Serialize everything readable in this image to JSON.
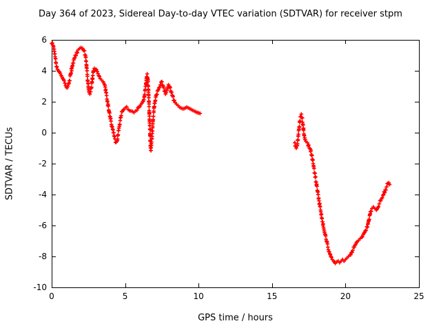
{
  "chart_data": {
    "type": "scatter",
    "title": "Day 364 of 2023, Sidereal Day-to-day VTEC variation (SDTVAR) for receiver stpm",
    "xlabel": "GPS time / hours",
    "ylabel": "SDTVAR / TECUs",
    "xlim": [
      0,
      25
    ],
    "ylim": [
      -10,
      6
    ],
    "xticks": [
      0,
      5,
      10,
      15,
      20,
      25
    ],
    "yticks": [
      -10,
      -8,
      -6,
      -4,
      -2,
      0,
      2,
      4,
      6
    ],
    "grid": false,
    "legend": "none",
    "marker": "plus",
    "marker_color": "#ff0000",
    "axis_color": "#000000",
    "background": "#ffffff",
    "series": [
      {
        "name": "SDTVAR",
        "points": [
          [
            0,
            5.75
          ],
          [
            0.05,
            5.8
          ],
          [
            0.1,
            5.65
          ],
          [
            0.15,
            5.4
          ],
          [
            0.2,
            5.1
          ],
          [
            0.25,
            4.8
          ],
          [
            0.3,
            4.5
          ],
          [
            0.35,
            4.25
          ],
          [
            0.4,
            4.1
          ],
          [
            0.45,
            4.0
          ],
          [
            0.5,
            3.95
          ],
          [
            0.55,
            3.9
          ],
          [
            0.6,
            3.8
          ],
          [
            0.65,
            3.7
          ],
          [
            0.7,
            3.6
          ],
          [
            0.75,
            3.5
          ],
          [
            0.8,
            3.45
          ],
          [
            0.85,
            3.35
          ],
          [
            0.9,
            3.2
          ],
          [
            0.95,
            3.05
          ],
          [
            1.0,
            2.95
          ],
          [
            1.05,
            2.9
          ],
          [
            1.1,
            3.0
          ],
          [
            1.15,
            3.15
          ],
          [
            1.2,
            3.35
          ],
          [
            1.3,
            3.8
          ],
          [
            1.4,
            4.3
          ],
          [
            1.5,
            4.7
          ],
          [
            1.6,
            5.0
          ],
          [
            1.7,
            5.2
          ],
          [
            1.8,
            5.35
          ],
          [
            1.9,
            5.45
          ],
          [
            2.0,
            5.5
          ],
          [
            2.1,
            5.45
          ],
          [
            2.2,
            5.3
          ],
          [
            2.3,
            5.0
          ],
          [
            2.35,
            4.6
          ],
          [
            2.4,
            4.0
          ],
          [
            2.45,
            3.4
          ],
          [
            2.5,
            2.9
          ],
          [
            2.55,
            2.6
          ],
          [
            2.6,
            2.5
          ],
          [
            2.65,
            2.65
          ],
          [
            2.7,
            2.9
          ],
          [
            2.75,
            3.3
          ],
          [
            2.8,
            3.7
          ],
          [
            2.85,
            4.0
          ],
          [
            2.9,
            4.15
          ],
          [
            3.0,
            4.1
          ],
          [
            3.1,
            3.95
          ],
          [
            3.2,
            3.7
          ],
          [
            3.3,
            3.5
          ],
          [
            3.4,
            3.4
          ],
          [
            3.5,
            3.3
          ],
          [
            3.6,
            3.1
          ],
          [
            3.7,
            2.6
          ],
          [
            3.8,
            2.0
          ],
          [
            3.9,
            1.4
          ],
          [
            4.0,
            0.9
          ],
          [
            4.1,
            0.4
          ],
          [
            4.2,
            0.0
          ],
          [
            4.3,
            -0.4
          ],
          [
            4.4,
            -0.6
          ],
          [
            4.45,
            -0.5
          ],
          [
            4.5,
            -0.2
          ],
          [
            4.6,
            0.4
          ],
          [
            4.7,
            1.0
          ],
          [
            4.8,
            1.35
          ],
          [
            4.9,
            1.5
          ],
          [
            5.0,
            1.6
          ],
          [
            5.2,
            1.5
          ],
          [
            5.4,
            1.4
          ],
          [
            5.6,
            1.3
          ],
          [
            5.8,
            1.45
          ],
          [
            6.0,
            1.7
          ],
          [
            6.2,
            2.0
          ],
          [
            6.3,
            2.3
          ],
          [
            6.4,
            3.0
          ],
          [
            6.45,
            3.5
          ],
          [
            6.5,
            3.8
          ],
          [
            6.55,
            3.4
          ],
          [
            6.6,
            2.4
          ],
          [
            6.65,
            1.2
          ],
          [
            6.7,
            -0.2
          ],
          [
            6.73,
            -1.0
          ],
          [
            6.75,
            -1.15
          ],
          [
            6.8,
            -0.6
          ],
          [
            6.85,
            0.1
          ],
          [
            6.9,
            0.8
          ],
          [
            6.95,
            1.4
          ],
          [
            7.0,
            1.9
          ],
          [
            7.1,
            2.4
          ],
          [
            7.2,
            2.7
          ],
          [
            7.3,
            2.9
          ],
          [
            7.4,
            3.1
          ],
          [
            7.5,
            3.3
          ],
          [
            7.6,
            3.0
          ],
          [
            7.7,
            2.7
          ],
          [
            7.75,
            2.5
          ],
          [
            7.8,
            2.6
          ],
          [
            7.9,
            2.95
          ],
          [
            7.95,
            3.1
          ],
          [
            8.0,
            3.0
          ],
          [
            8.1,
            2.7
          ],
          [
            8.2,
            2.4
          ],
          [
            8.3,
            2.1
          ],
          [
            8.4,
            1.95
          ],
          [
            8.5,
            1.85
          ],
          [
            8.6,
            1.75
          ],
          [
            8.7,
            1.65
          ],
          [
            8.8,
            1.6
          ],
          [
            8.9,
            1.55
          ],
          [
            9.0,
            1.55
          ],
          [
            9.1,
            1.6
          ],
          [
            9.2,
            1.65
          ],
          [
            9.3,
            1.6
          ],
          [
            9.4,
            1.55
          ],
          [
            9.5,
            1.5
          ],
          [
            9.6,
            1.45
          ],
          [
            9.7,
            1.4
          ],
          [
            9.8,
            1.35
          ],
          [
            9.9,
            1.3
          ],
          [
            10.0,
            1.28
          ],
          [
            10.1,
            1.25
          ],
          [
            16.55,
            -0.65
          ],
          [
            16.6,
            -0.85
          ],
          [
            16.65,
            -1.0
          ],
          [
            16.7,
            -0.85
          ],
          [
            16.75,
            -0.5
          ],
          [
            16.8,
            -0.1
          ],
          [
            16.85,
            0.35
          ],
          [
            16.9,
            0.75
          ],
          [
            16.95,
            1.05
          ],
          [
            17.0,
            1.2
          ],
          [
            17.05,
            0.95
          ],
          [
            17.1,
            0.55
          ],
          [
            17.15,
            0.15
          ],
          [
            17.2,
            -0.2
          ],
          [
            17.25,
            -0.45
          ],
          [
            17.3,
            -0.55
          ],
          [
            17.4,
            -0.65
          ],
          [
            17.5,
            -0.8
          ],
          [
            17.6,
            -1.05
          ],
          [
            17.7,
            -1.45
          ],
          [
            17.8,
            -2.0
          ],
          [
            17.9,
            -2.6
          ],
          [
            18.0,
            -3.2
          ],
          [
            18.1,
            -3.8
          ],
          [
            18.2,
            -4.4
          ],
          [
            18.3,
            -5.0
          ],
          [
            18.4,
            -5.55
          ],
          [
            18.5,
            -6.1
          ],
          [
            18.6,
            -6.55
          ],
          [
            18.7,
            -7.0
          ],
          [
            18.8,
            -7.4
          ],
          [
            18.9,
            -7.7
          ],
          [
            19.0,
            -8.0
          ],
          [
            19.1,
            -8.2
          ],
          [
            19.2,
            -8.3
          ],
          [
            19.3,
            -8.45
          ],
          [
            19.4,
            -8.35
          ],
          [
            19.5,
            -8.3
          ],
          [
            19.6,
            -8.4
          ],
          [
            19.7,
            -8.3
          ],
          [
            19.8,
            -8.2
          ],
          [
            19.9,
            -8.3
          ],
          [
            20.0,
            -8.2
          ],
          [
            20.1,
            -8.1
          ],
          [
            20.2,
            -8.0
          ],
          [
            20.3,
            -7.9
          ],
          [
            20.4,
            -7.75
          ],
          [
            20.5,
            -7.6
          ],
          [
            20.6,
            -7.4
          ],
          [
            20.7,
            -7.2
          ],
          [
            20.8,
            -7.05
          ],
          [
            20.9,
            -6.95
          ],
          [
            21.0,
            -6.85
          ],
          [
            21.1,
            -6.75
          ],
          [
            21.2,
            -6.6
          ],
          [
            21.3,
            -6.45
          ],
          [
            21.4,
            -6.3
          ],
          [
            21.5,
            -6.1
          ],
          [
            21.6,
            -5.6
          ],
          [
            21.7,
            -5.1
          ],
          [
            21.8,
            -4.9
          ],
          [
            21.9,
            -4.8
          ],
          [
            22.0,
            -4.9
          ],
          [
            22.1,
            -5.0
          ],
          [
            22.2,
            -4.85
          ],
          [
            22.3,
            -4.6
          ],
          [
            22.4,
            -4.4
          ],
          [
            22.5,
            -4.2
          ],
          [
            22.6,
            -4.0
          ],
          [
            22.7,
            -3.7
          ],
          [
            22.8,
            -3.5
          ],
          [
            22.9,
            -3.3
          ],
          [
            22.95,
            -3.25
          ],
          [
            23.0,
            -3.35
          ]
        ]
      }
    ]
  }
}
